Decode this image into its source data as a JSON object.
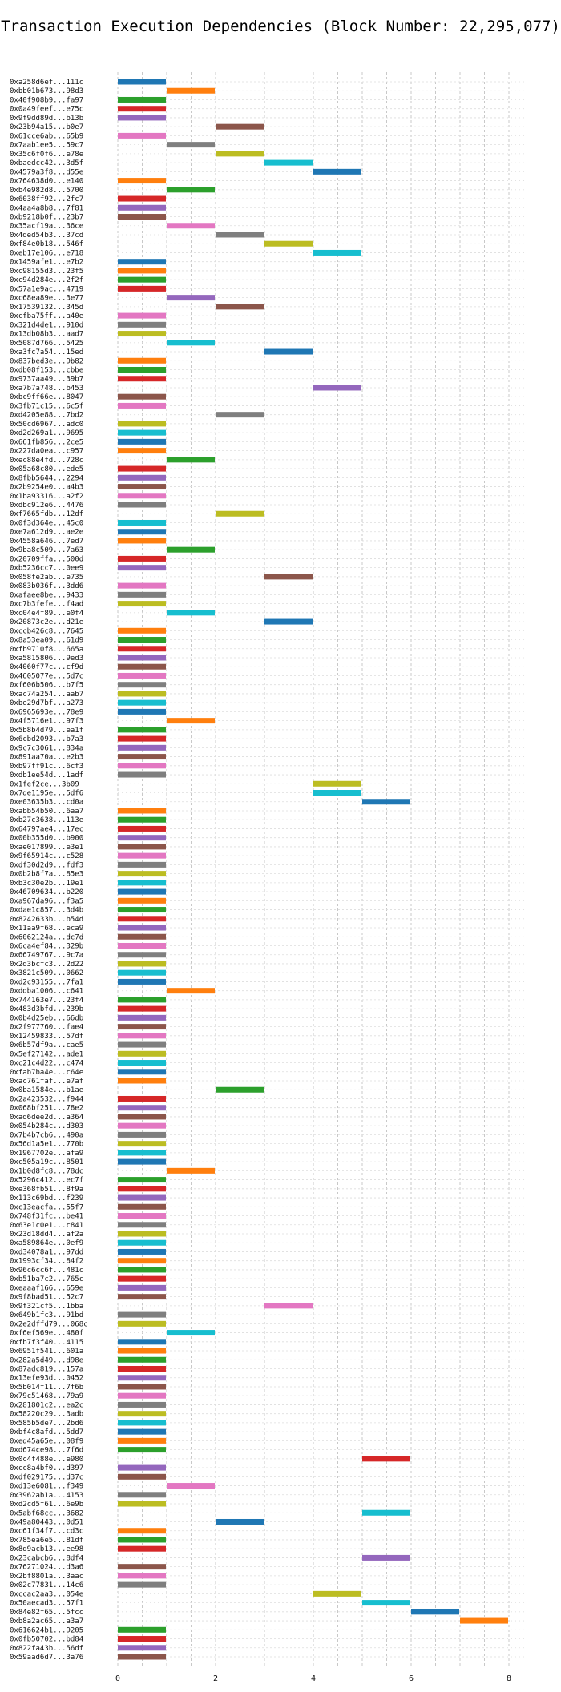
{
  "chart_data": {
    "type": "gantt-bar",
    "title": "Transaction Execution Dependencies (Block Number: 22,295,077)",
    "xlabel": "",
    "ylabel": "",
    "xlim": [
      0,
      8
    ],
    "xticks": [
      0,
      2,
      4,
      6,
      8
    ],
    "grid": "dashed vertical",
    "palette": [
      "#1f77b4",
      "#ff7f0e",
      "#2ca02c",
      "#d62728",
      "#9467bd",
      "#8c564b",
      "#e377c2",
      "#7f7f7f",
      "#bcbd22",
      "#17becf"
    ],
    "rows": [
      {
        "label": "0xa258d6ef...111c",
        "start": 0,
        "end": 1
      },
      {
        "label": "0xbb01b673...98d3",
        "start": 1,
        "end": 2
      },
      {
        "label": "0x40f908b9...fa97",
        "start": 0,
        "end": 1
      },
      {
        "label": "0x0a49feef...e75c",
        "start": 0,
        "end": 1
      },
      {
        "label": "0x9f9dd89d...b13b",
        "start": 0,
        "end": 1
      },
      {
        "label": "0x23b94a15...b0e7",
        "start": 2,
        "end": 3
      },
      {
        "label": "0x61cce6ab...65b9",
        "start": 0,
        "end": 1
      },
      {
        "label": "0x7aab1ee5...59c7",
        "start": 1,
        "end": 2
      },
      {
        "label": "0x35c6f0f6...e78e",
        "start": 2,
        "end": 3
      },
      {
        "label": "0xbaedcc42...3d5f",
        "start": 3,
        "end": 4
      },
      {
        "label": "0x4579a3f8...d55e",
        "start": 4,
        "end": 5
      },
      {
        "label": "0x764638d0...e140",
        "start": 0,
        "end": 1
      },
      {
        "label": "0xb4e982d8...5700",
        "start": 1,
        "end": 2
      },
      {
        "label": "0x6038ff92...2fc7",
        "start": 0,
        "end": 1
      },
      {
        "label": "0x4aa4a8b8...7f81",
        "start": 0,
        "end": 1
      },
      {
        "label": "0xb9218b0f...23b7",
        "start": 0,
        "end": 1
      },
      {
        "label": "0x35acf19a...36ce",
        "start": 1,
        "end": 2
      },
      {
        "label": "0x4ded54b3...37cd",
        "start": 2,
        "end": 3
      },
      {
        "label": "0xf84e0b18...546f",
        "start": 3,
        "end": 4
      },
      {
        "label": "0xeb17e106...e718",
        "start": 4,
        "end": 5
      },
      {
        "label": "0x1459afe1...e7b2",
        "start": 0,
        "end": 1
      },
      {
        "label": "0xc98155d3...23f5",
        "start": 0,
        "end": 1
      },
      {
        "label": "0xc94d284e...2f2f",
        "start": 0,
        "end": 1
      },
      {
        "label": "0x57a1e9ac...4719",
        "start": 0,
        "end": 1
      },
      {
        "label": "0xc68ea89e...3e77",
        "start": 1,
        "end": 2
      },
      {
        "label": "0x17539132...345d",
        "start": 2,
        "end": 3
      },
      {
        "label": "0xcfba75ff...a40e",
        "start": 0,
        "end": 1
      },
      {
        "label": "0x321d4de1...910d",
        "start": 0,
        "end": 1
      },
      {
        "label": "0x13db08b3...aad7",
        "start": 0,
        "end": 1
      },
      {
        "label": "0x5087d766...5425",
        "start": 1,
        "end": 2
      },
      {
        "label": "0xa3fc7a54...15ed",
        "start": 3,
        "end": 4
      },
      {
        "label": "0x837bed3e...9b82",
        "start": 0,
        "end": 1
      },
      {
        "label": "0xdb08f153...cbbe",
        "start": 0,
        "end": 1
      },
      {
        "label": "0x9737aa49...39b7",
        "start": 0,
        "end": 1
      },
      {
        "label": "0xa7b7a748...b453",
        "start": 4,
        "end": 5
      },
      {
        "label": "0xbc9ff66e...8047",
        "start": 0,
        "end": 1
      },
      {
        "label": "0x3fb71c15...6c5f",
        "start": 0,
        "end": 1
      },
      {
        "label": "0xd4205e88...7bd2",
        "start": 2,
        "end": 3
      },
      {
        "label": "0x50cd6967...adc0",
        "start": 0,
        "end": 1
      },
      {
        "label": "0xd2d269a1...9695",
        "start": 0,
        "end": 1
      },
      {
        "label": "0x661fb856...2ce5",
        "start": 0,
        "end": 1
      },
      {
        "label": "0x227da0ea...c957",
        "start": 0,
        "end": 1
      },
      {
        "label": "0xec88e4fd...728c",
        "start": 1,
        "end": 2
      },
      {
        "label": "0x05a68c80...ede5",
        "start": 0,
        "end": 1
      },
      {
        "label": "0x8fbb5644...2294",
        "start": 0,
        "end": 1
      },
      {
        "label": "0x2b9254e0...a4b3",
        "start": 0,
        "end": 1
      },
      {
        "label": "0x1ba93316...a2f2",
        "start": 0,
        "end": 1
      },
      {
        "label": "0xdbc912e6...4476",
        "start": 0,
        "end": 1
      },
      {
        "label": "0xf7665fdb...12df",
        "start": 2,
        "end": 3
      },
      {
        "label": "0x0f3d364e...45c0",
        "start": 0,
        "end": 1
      },
      {
        "label": "0xe7a612d9...ae2e",
        "start": 0,
        "end": 1
      },
      {
        "label": "0x4558a646...7ed7",
        "start": 0,
        "end": 1
      },
      {
        "label": "0x9ba8c509...7a63",
        "start": 1,
        "end": 2
      },
      {
        "label": "0x20709ffa...500d",
        "start": 0,
        "end": 1
      },
      {
        "label": "0xb5236cc7...0ee9",
        "start": 0,
        "end": 1
      },
      {
        "label": "0x058fe2ab...e735",
        "start": 3,
        "end": 4
      },
      {
        "label": "0x083b036f...3dd6",
        "start": 0,
        "end": 1
      },
      {
        "label": "0xafaee8be...9433",
        "start": 0,
        "end": 1
      },
      {
        "label": "0xc7b3fefe...f4ad",
        "start": 0,
        "end": 1
      },
      {
        "label": "0xc04e4f89...e0f4",
        "start": 1,
        "end": 2
      },
      {
        "label": "0x20873c2e...d21e",
        "start": 3,
        "end": 4
      },
      {
        "label": "0xccb426c8...7645",
        "start": 0,
        "end": 1
      },
      {
        "label": "0x8a53ea09...61d9",
        "start": 0,
        "end": 1
      },
      {
        "label": "0xfb9710f8...665a",
        "start": 0,
        "end": 1
      },
      {
        "label": "0xa5815806...9ed3",
        "start": 0,
        "end": 1
      },
      {
        "label": "0x4060f77c...cf9d",
        "start": 0,
        "end": 1
      },
      {
        "label": "0x4605077e...5d7c",
        "start": 0,
        "end": 1
      },
      {
        "label": "0xf606b506...b7f5",
        "start": 0,
        "end": 1
      },
      {
        "label": "0xac74a254...aab7",
        "start": 0,
        "end": 1
      },
      {
        "label": "0xbe29d7bf...a273",
        "start": 0,
        "end": 1
      },
      {
        "label": "0x6965693e...78e9",
        "start": 0,
        "end": 1
      },
      {
        "label": "0x4f5716e1...97f3",
        "start": 1,
        "end": 2
      },
      {
        "label": "0x5b8b4d79...ea1f",
        "start": 0,
        "end": 1
      },
      {
        "label": "0x6cbd2093...b7a3",
        "start": 0,
        "end": 1
      },
      {
        "label": "0x9c7c3061...834a",
        "start": 0,
        "end": 1
      },
      {
        "label": "0x891aa70a...e2b3",
        "start": 0,
        "end": 1
      },
      {
        "label": "0xb97ff91c...6cf3",
        "start": 0,
        "end": 1
      },
      {
        "label": "0xdb1ee54d...1adf",
        "start": 0,
        "end": 1
      },
      {
        "label": "0x1fef2ce...3b09",
        "start": 4,
        "end": 5
      },
      {
        "label": "0x7de1195e...5df6",
        "start": 4,
        "end": 5
      },
      {
        "label": "0xe03635b3...cd0a",
        "start": 5,
        "end": 6
      },
      {
        "label": "0xabb54b50...6aa7",
        "start": 0,
        "end": 1
      },
      {
        "label": "0xb27c3638...113e",
        "start": 0,
        "end": 1
      },
      {
        "label": "0x64797ae4...17ec",
        "start": 0,
        "end": 1
      },
      {
        "label": "0x00b355d0...b900",
        "start": 0,
        "end": 1
      },
      {
        "label": "0xae017899...e3e1",
        "start": 0,
        "end": 1
      },
      {
        "label": "0x9f65914c...c528",
        "start": 0,
        "end": 1
      },
      {
        "label": "0xdf30d2d9...fdf3",
        "start": 0,
        "end": 1
      },
      {
        "label": "0x0b2b8f7a...85e3",
        "start": 0,
        "end": 1
      },
      {
        "label": "0xb3c30e2b...19e1",
        "start": 0,
        "end": 1
      },
      {
        "label": "0x46709634...b220",
        "start": 0,
        "end": 1
      },
      {
        "label": "0xa967da96...f3a5",
        "start": 0,
        "end": 1
      },
      {
        "label": "0xdae1c857...3d4b",
        "start": 0,
        "end": 1
      },
      {
        "label": "0x8242633b...b54d",
        "start": 0,
        "end": 1
      },
      {
        "label": "0x11aa9f68...eca9",
        "start": 0,
        "end": 1
      },
      {
        "label": "0x6062124a...dc7d",
        "start": 0,
        "end": 1
      },
      {
        "label": "0x6ca4ef84...329b",
        "start": 0,
        "end": 1
      },
      {
        "label": "0x66749767...9c7a",
        "start": 0,
        "end": 1
      },
      {
        "label": "0x2d3bcfc3...2d22",
        "start": 0,
        "end": 1
      },
      {
        "label": "0x3821c509...0662",
        "start": 0,
        "end": 1
      },
      {
        "label": "0xd2c93155...7fa1",
        "start": 0,
        "end": 1
      },
      {
        "label": "0xddba1006...c641",
        "start": 1,
        "end": 2
      },
      {
        "label": "0x744163e7...23f4",
        "start": 0,
        "end": 1
      },
      {
        "label": "0x483d3bfd...239b",
        "start": 0,
        "end": 1
      },
      {
        "label": "0x0b4d25eb...66db",
        "start": 0,
        "end": 1
      },
      {
        "label": "0x2f977760...fae4",
        "start": 0,
        "end": 1
      },
      {
        "label": "0x12459833...57df",
        "start": 0,
        "end": 1
      },
      {
        "label": "0x6b57df9a...cae5",
        "start": 0,
        "end": 1
      },
      {
        "label": "0x5ef27142...ade1",
        "start": 0,
        "end": 1
      },
      {
        "label": "0xc21c4d22...c474",
        "start": 0,
        "end": 1
      },
      {
        "label": "0xfab7ba4e...c64e",
        "start": 0,
        "end": 1
      },
      {
        "label": "0xac761faf...e7af",
        "start": 0,
        "end": 1
      },
      {
        "label": "0x0ba1584e...b1ae",
        "start": 2,
        "end": 3
      },
      {
        "label": "0x2a423532...f944",
        "start": 0,
        "end": 1
      },
      {
        "label": "0x068bf251...78e2",
        "start": 0,
        "end": 1
      },
      {
        "label": "0xad6dee2d...a364",
        "start": 0,
        "end": 1
      },
      {
        "label": "0x054b284c...d303",
        "start": 0,
        "end": 1
      },
      {
        "label": "0x7b4b7cb6...490a",
        "start": 0,
        "end": 1
      },
      {
        "label": "0x56d1a5e1...770b",
        "start": 0,
        "end": 1
      },
      {
        "label": "0x1967702e...afa9",
        "start": 0,
        "end": 1
      },
      {
        "label": "0xc505a19c...8501",
        "start": 0,
        "end": 1
      },
      {
        "label": "0x1b0d8fc8...78dc",
        "start": 1,
        "end": 2
      },
      {
        "label": "0x5296c412...ec7f",
        "start": 0,
        "end": 1
      },
      {
        "label": "0xe368fb51...8f9a",
        "start": 0,
        "end": 1
      },
      {
        "label": "0x113c69bd...f239",
        "start": 0,
        "end": 1
      },
      {
        "label": "0xc13eacfa...55f7",
        "start": 0,
        "end": 1
      },
      {
        "label": "0x748f31fc...be41",
        "start": 0,
        "end": 1
      },
      {
        "label": "0x63e1c0e1...c841",
        "start": 0,
        "end": 1
      },
      {
        "label": "0x23d18dd4...af2a",
        "start": 0,
        "end": 1
      },
      {
        "label": "0xa589864e...0ef9",
        "start": 0,
        "end": 1
      },
      {
        "label": "0xd34078a1...97dd",
        "start": 0,
        "end": 1
      },
      {
        "label": "0x1993cf34...84f2",
        "start": 0,
        "end": 1
      },
      {
        "label": "0x96c6cc6f...481c",
        "start": 0,
        "end": 1
      },
      {
        "label": "0xb51ba7c2...765c",
        "start": 0,
        "end": 1
      },
      {
        "label": "0xeaaaf166...659e",
        "start": 0,
        "end": 1
      },
      {
        "label": "0x9f8bad51...52c7",
        "start": 0,
        "end": 1
      },
      {
        "label": "0x9f321cf5...1bba",
        "start": 3,
        "end": 4
      },
      {
        "label": "0x649b1fc3...91bd",
        "start": 0,
        "end": 1
      },
      {
        "label": "0x2e2dffd79...068c",
        "start": 0,
        "end": 1
      },
      {
        "label": "0xf6ef569e...480f",
        "start": 1,
        "end": 2
      },
      {
        "label": "0xfb7f3f40...4115",
        "start": 0,
        "end": 1
      },
      {
        "label": "0x6951f541...601a",
        "start": 0,
        "end": 1
      },
      {
        "label": "0x282a5d49...d98e",
        "start": 0,
        "end": 1
      },
      {
        "label": "0x87adc819...157a",
        "start": 0,
        "end": 1
      },
      {
        "label": "0x13efe93d...0452",
        "start": 0,
        "end": 1
      },
      {
        "label": "0x5b014f11...7f6b",
        "start": 0,
        "end": 1
      },
      {
        "label": "0x79c51468...79a9",
        "start": 0,
        "end": 1
      },
      {
        "label": "0x281801c2...ea2c",
        "start": 0,
        "end": 1
      },
      {
        "label": "0x58220c29...3adb",
        "start": 0,
        "end": 1
      },
      {
        "label": "0x585b5de7...2bd6",
        "start": 0,
        "end": 1
      },
      {
        "label": "0xbf4c8afd...5dd7",
        "start": 0,
        "end": 1
      },
      {
        "label": "0xed45a65e...08f9",
        "start": 0,
        "end": 1
      },
      {
        "label": "0xd674ce98...7f6d",
        "start": 0,
        "end": 1
      },
      {
        "label": "0x0c4f488e...e980",
        "start": 5,
        "end": 6
      },
      {
        "label": "0xcc8a4bf0...d397",
        "start": 0,
        "end": 1
      },
      {
        "label": "0xdf029175...d37c",
        "start": 0,
        "end": 1
      },
      {
        "label": "0xd13e6081...f349",
        "start": 1,
        "end": 2
      },
      {
        "label": "0x3962ab1a...4153",
        "start": 0,
        "end": 1
      },
      {
        "label": "0xd2cd5f61...6e9b",
        "start": 0,
        "end": 1
      },
      {
        "label": "0x5abf68cc...3682",
        "start": 5,
        "end": 6
      },
      {
        "label": "0x49a80443...0d51",
        "start": 2,
        "end": 3
      },
      {
        "label": "0xc61f34f7...cd3c",
        "start": 0,
        "end": 1
      },
      {
        "label": "0x785ea6e5...81df",
        "start": 0,
        "end": 1
      },
      {
        "label": "0x8d9acb13...ee98",
        "start": 0,
        "end": 1
      },
      {
        "label": "0x23cabcb6...8df4",
        "start": 5,
        "end": 6
      },
      {
        "label": "0x76271024...d3a6",
        "start": 0,
        "end": 1
      },
      {
        "label": "0x2bf8801a...3aac",
        "start": 0,
        "end": 1
      },
      {
        "label": "0x02c77831...14c6",
        "start": 0,
        "end": 1
      },
      {
        "label": "0xccac2aa3...054e",
        "start": 4,
        "end": 5
      },
      {
        "label": "0x50aecad3...57f1",
        "start": 5,
        "end": 6
      },
      {
        "label": "0x84e82f65...5fcc",
        "start": 6,
        "end": 7
      },
      {
        "label": "0xb8a2ac65...a3a7",
        "start": 7,
        "end": 8
      },
      {
        "label": "0x616624b1...9205",
        "start": 0,
        "end": 1
      },
      {
        "label": "0x0fb50702...bd84",
        "start": 0,
        "end": 1
      },
      {
        "label": "0x822fa43b...56df",
        "start": 0,
        "end": 1
      },
      {
        "label": "0x59aad6d7...3a76",
        "start": 0,
        "end": 1
      }
    ]
  }
}
